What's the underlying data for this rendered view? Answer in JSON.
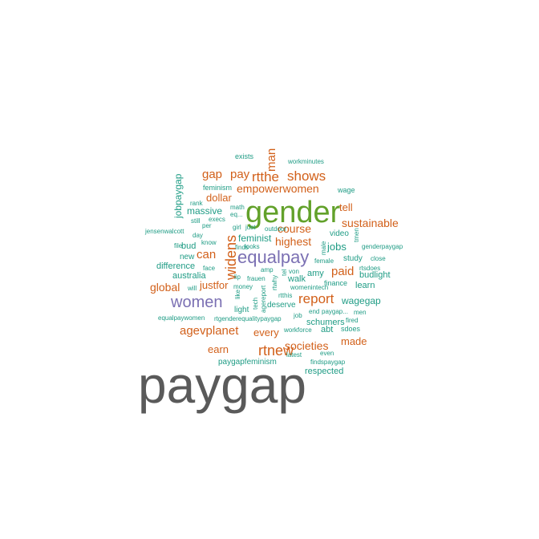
{
  "palette": {
    "gray": "#5a5a5a",
    "green": "#62a12a",
    "purple": "#7b70b3",
    "orange": "#d2601a",
    "teal": "#1f9c85"
  },
  "words": [
    {
      "text": "paygap",
      "color": "gray"
    },
    {
      "text": "gender",
      "color": "green"
    },
    {
      "text": "equalpay",
      "color": "purple"
    },
    {
      "text": "women",
      "color": "purple"
    },
    {
      "text": "widens",
      "color": "orange"
    },
    {
      "text": "rtnew",
      "color": "orange"
    },
    {
      "text": "report",
      "color": "orange"
    },
    {
      "text": "shows",
      "color": "orange"
    },
    {
      "text": "rtthe",
      "color": "orange"
    },
    {
      "text": "agevplanet",
      "color": "orange"
    },
    {
      "text": "man",
      "color": "orange"
    },
    {
      "text": "gap",
      "color": "orange"
    },
    {
      "text": "pay",
      "color": "orange"
    },
    {
      "text": "empowerwomen",
      "color": "orange"
    },
    {
      "text": "sustainable",
      "color": "orange"
    },
    {
      "text": "highest",
      "color": "orange"
    },
    {
      "text": "course",
      "color": "orange"
    },
    {
      "text": "paid",
      "color": "orange"
    },
    {
      "text": "can",
      "color": "orange"
    },
    {
      "text": "societies",
      "color": "orange"
    },
    {
      "text": "global",
      "color": "orange"
    },
    {
      "text": "justfor",
      "color": "orange"
    },
    {
      "text": "every",
      "color": "orange"
    },
    {
      "text": "earn",
      "color": "orange"
    },
    {
      "text": "made",
      "color": "orange"
    },
    {
      "text": "tell",
      "color": "orange"
    },
    {
      "text": "dollar",
      "color": "orange"
    },
    {
      "text": "jobs",
      "color": "teal"
    },
    {
      "text": "wagegap",
      "color": "teal"
    },
    {
      "text": "feminist",
      "color": "teal"
    },
    {
      "text": "massive",
      "color": "teal"
    },
    {
      "text": "australia",
      "color": "teal"
    },
    {
      "text": "amy",
      "color": "teal"
    },
    {
      "text": "difference",
      "color": "teal"
    },
    {
      "text": "respected",
      "color": "teal"
    },
    {
      "text": "jobpaygap",
      "color": "teal"
    },
    {
      "text": "bud",
      "color": "teal"
    },
    {
      "text": "budlight",
      "color": "teal"
    },
    {
      "text": "schumers",
      "color": "teal"
    },
    {
      "text": "abt",
      "color": "teal"
    },
    {
      "text": "learn",
      "color": "teal"
    },
    {
      "text": "walk",
      "color": "teal"
    },
    {
      "text": "study",
      "color": "teal"
    },
    {
      "text": "video",
      "color": "teal"
    },
    {
      "text": "new",
      "color": "teal"
    },
    {
      "text": "paygapfeminism",
      "color": "teal"
    },
    {
      "text": "sdoes",
      "color": "teal"
    },
    {
      "text": "light",
      "color": "teal"
    },
    {
      "text": "deserve",
      "color": "teal"
    },
    {
      "text": "finance",
      "color": "teal"
    },
    {
      "text": "feminism",
      "color": "teal"
    },
    {
      "text": "wage",
      "color": "teal"
    },
    {
      "text": "exists",
      "color": "teal"
    },
    {
      "text": "workminutes",
      "color": "teal"
    },
    {
      "text": "rank",
      "color": "teal"
    },
    {
      "text": "still",
      "color": "teal"
    },
    {
      "text": "execs",
      "color": "teal"
    },
    {
      "text": "math",
      "color": "teal"
    },
    {
      "text": "eq...",
      "color": "teal"
    },
    {
      "text": "jensenwalcott",
      "color": "teal"
    },
    {
      "text": "girl",
      "color": "teal"
    },
    {
      "text": "just",
      "color": "teal"
    },
    {
      "text": "outdoor",
      "color": "teal"
    },
    {
      "text": "per",
      "color": "teal"
    },
    {
      "text": "day",
      "color": "teal"
    },
    {
      "text": "file",
      "color": "teal"
    },
    {
      "text": "know",
      "color": "teal"
    },
    {
      "text": "finds",
      "color": "teal"
    },
    {
      "text": "looks",
      "color": "teal"
    },
    {
      "text": "male",
      "color": "teal"
    },
    {
      "text": "tmen",
      "color": "teal"
    },
    {
      "text": "genderpaygap",
      "color": "teal"
    },
    {
      "text": "rtsdoes",
      "color": "teal"
    },
    {
      "text": "close",
      "color": "teal"
    },
    {
      "text": "female",
      "color": "teal"
    },
    {
      "text": "face",
      "color": "teal"
    },
    {
      "text": "lip",
      "color": "teal"
    },
    {
      "text": "frauen",
      "color": "teal"
    },
    {
      "text": "amp",
      "color": "teal"
    },
    {
      "text": "von",
      "color": "teal"
    },
    {
      "text": "tel",
      "color": "teal"
    },
    {
      "text": "rtthis",
      "color": "teal"
    },
    {
      "text": "will",
      "color": "teal"
    },
    {
      "text": "money",
      "color": "teal"
    },
    {
      "text": "like",
      "color": "teal"
    },
    {
      "text": "tech",
      "color": "teal"
    },
    {
      "text": "agereport",
      "color": "teal"
    },
    {
      "text": "rtwhy",
      "color": "teal"
    },
    {
      "text": "womenintech",
      "color": "teal"
    },
    {
      "text": "job",
      "color": "teal"
    },
    {
      "text": "end",
      "color": "teal"
    },
    {
      "text": "paygap...",
      "color": "teal"
    },
    {
      "text": "men",
      "color": "teal"
    },
    {
      "text": "fired",
      "color": "teal"
    },
    {
      "text": "equalpaywomen",
      "color": "teal"
    },
    {
      "text": "rtgenderequalitypaygap",
      "color": "teal"
    },
    {
      "text": "workforce",
      "color": "teal"
    },
    {
      "text": "latest",
      "color": "teal"
    },
    {
      "text": "even",
      "color": "teal"
    },
    {
      "text": "findspaygap",
      "color": "teal"
    }
  ]
}
